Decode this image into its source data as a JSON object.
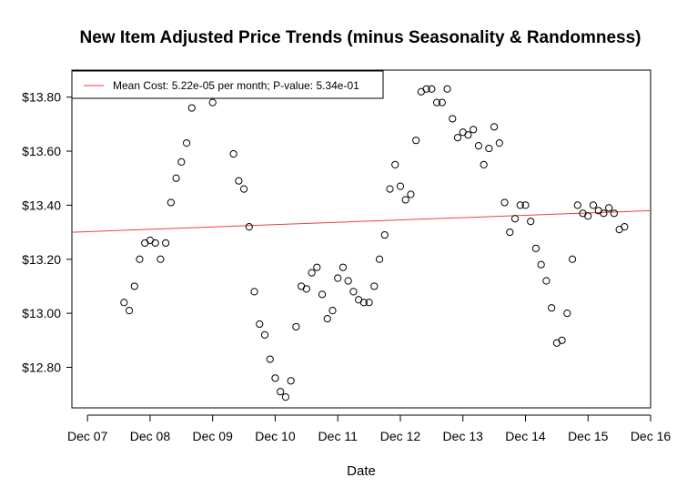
{
  "chart_data": {
    "type": "scatter",
    "title": "New Item Adjusted Price Trends (minus Seasonality & Randomness)",
    "xlabel": "Date",
    "ylabel": "",
    "x_ticks": [
      "Dec 07",
      "Dec 08",
      "Dec 09",
      "Dec 10",
      "Dec 11",
      "Dec 12",
      "Dec 13",
      "Dec 14",
      "Dec 15",
      "Dec 16"
    ],
    "y_ticks": [
      "$12.80",
      "$13.00",
      "$13.20",
      "$13.40",
      "$13.60",
      "$13.80"
    ],
    "y_tick_values": [
      12.8,
      13.0,
      13.2,
      13.4,
      13.6,
      13.8
    ],
    "xlim": [
      "2007-09",
      "2016-12"
    ],
    "ylim": [
      12.65,
      13.9
    ],
    "series": [
      {
        "values": [
          {
            "x": "2008-07",
            "y": 13.04
          },
          {
            "x": "2008-08",
            "y": 13.01
          },
          {
            "x": "2008-09",
            "y": 13.1
          },
          {
            "x": "2008-10",
            "y": 13.2
          },
          {
            "x": "2008-11",
            "y": 13.26
          },
          {
            "x": "2008-12",
            "y": 13.27
          },
          {
            "x": "2009-01",
            "y": 13.26
          },
          {
            "x": "2009-02",
            "y": 13.2
          },
          {
            "x": "2009-03",
            "y": 13.26
          },
          {
            "x": "2009-04",
            "y": 13.41
          },
          {
            "x": "2009-05",
            "y": 13.5
          },
          {
            "x": "2009-06",
            "y": 13.56
          },
          {
            "x": "2009-07",
            "y": 13.63
          },
          {
            "x": "2009-08",
            "y": 13.76
          },
          {
            "x": "2009-09",
            "y": 13.82
          },
          {
            "x": "2009-10",
            "y": 13.83
          },
          {
            "x": "2009-11",
            "y": 13.83
          },
          {
            "x": "2009-12",
            "y": 13.78
          },
          {
            "x": "2010-01",
            "y": 13.81
          },
          {
            "x": "2010-03",
            "y": 13.82
          },
          {
            "x": "2010-04",
            "y": 13.59
          },
          {
            "x": "2010-05",
            "y": 13.49
          },
          {
            "x": "2010-06",
            "y": 13.46
          },
          {
            "x": "2010-07",
            "y": 13.32
          },
          {
            "x": "2010-08",
            "y": 13.08
          },
          {
            "x": "2010-09",
            "y": 12.96
          },
          {
            "x": "2010-10",
            "y": 12.92
          },
          {
            "x": "2010-11",
            "y": 12.83
          },
          {
            "x": "2010-12",
            "y": 12.76
          },
          {
            "x": "2011-01",
            "y": 12.71
          },
          {
            "x": "2011-02",
            "y": 12.69
          },
          {
            "x": "2011-03",
            "y": 12.75
          },
          {
            "x": "2011-04",
            "y": 12.95
          },
          {
            "x": "2011-05",
            "y": 13.1
          },
          {
            "x": "2011-06",
            "y": 13.09
          },
          {
            "x": "2011-07",
            "y": 13.15
          },
          {
            "x": "2011-08",
            "y": 13.17
          },
          {
            "x": "2011-09",
            "y": 13.07
          },
          {
            "x": "2011-10",
            "y": 12.98
          },
          {
            "x": "2011-11",
            "y": 13.01
          },
          {
            "x": "2011-12",
            "y": 13.13
          },
          {
            "x": "2012-01",
            "y": 13.17
          },
          {
            "x": "2012-02",
            "y": 13.12
          },
          {
            "x": "2012-03",
            "y": 13.08
          },
          {
            "x": "2012-04",
            "y": 13.05
          },
          {
            "x": "2012-05",
            "y": 13.04
          },
          {
            "x": "2012-06",
            "y": 13.04
          },
          {
            "x": "2012-07",
            "y": 13.1
          },
          {
            "x": "2012-08",
            "y": 13.2
          },
          {
            "x": "2012-09",
            "y": 13.29
          },
          {
            "x": "2012-10",
            "y": 13.46
          },
          {
            "x": "2012-11",
            "y": 13.55
          },
          {
            "x": "2012-12",
            "y": 13.47
          },
          {
            "x": "2013-01",
            "y": 13.42
          },
          {
            "x": "2013-02",
            "y": 13.44
          },
          {
            "x": "2013-03",
            "y": 13.64
          },
          {
            "x": "2013-04",
            "y": 13.82
          },
          {
            "x": "2013-05",
            "y": 13.83
          },
          {
            "x": "2013-06",
            "y": 13.83
          },
          {
            "x": "2013-07",
            "y": 13.78
          },
          {
            "x": "2013-08",
            "y": 13.78
          },
          {
            "x": "2013-09",
            "y": 13.83
          },
          {
            "x": "2013-10",
            "y": 13.72
          },
          {
            "x": "2013-11",
            "y": 13.65
          },
          {
            "x": "2013-12",
            "y": 13.67
          },
          {
            "x": "2014-01",
            "y": 13.66
          },
          {
            "x": "2014-02",
            "y": 13.68
          },
          {
            "x": "2014-03",
            "y": 13.62
          },
          {
            "x": "2014-04",
            "y": 13.55
          },
          {
            "x": "2014-05",
            "y": 13.61
          },
          {
            "x": "2014-06",
            "y": 13.69
          },
          {
            "x": "2014-07",
            "y": 13.63
          },
          {
            "x": "2014-08",
            "y": 13.41
          },
          {
            "x": "2014-09",
            "y": 13.3
          },
          {
            "x": "2014-10",
            "y": 13.35
          },
          {
            "x": "2014-11",
            "y": 13.4
          },
          {
            "x": "2014-12",
            "y": 13.4
          },
          {
            "x": "2015-01",
            "y": 13.34
          },
          {
            "x": "2015-02",
            "y": 13.24
          },
          {
            "x": "2015-03",
            "y": 13.18
          },
          {
            "x": "2015-04",
            "y": 13.12
          },
          {
            "x": "2015-05",
            "y": 13.02
          },
          {
            "x": "2015-06",
            "y": 12.89
          },
          {
            "x": "2015-07",
            "y": 12.9
          },
          {
            "x": "2015-08",
            "y": 13.0
          },
          {
            "x": "2015-09",
            "y": 13.2
          },
          {
            "x": "2015-10",
            "y": 13.4
          },
          {
            "x": "2015-11",
            "y": 13.37
          },
          {
            "x": "2015-12",
            "y": 13.36
          },
          {
            "x": "2016-01",
            "y": 13.4
          },
          {
            "x": "2016-02",
            "y": 13.38
          },
          {
            "x": "2016-03",
            "y": 13.37
          },
          {
            "x": "2016-04",
            "y": 13.39
          },
          {
            "x": "2016-05",
            "y": 13.37
          },
          {
            "x": "2016-06",
            "y": 13.31
          },
          {
            "x": "2016-07",
            "y": 13.32
          }
        ]
      }
    ],
    "trend_line": {
      "label": "Mean Cost: 5.22e-05 per month; P-value: 5.34e-01",
      "color": "#e8413a",
      "start": {
        "x": "2007-09",
        "y": 13.3
      },
      "end": {
        "x": "2016-12",
        "y": 13.38
      }
    },
    "legend_position": "top-left",
    "grid": false
  }
}
